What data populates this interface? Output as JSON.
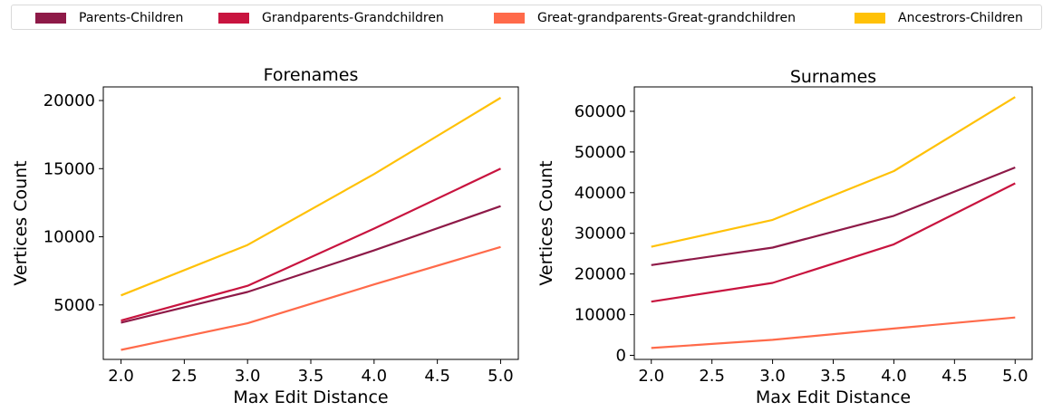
{
  "legend": {
    "items": [
      {
        "label": "Parents-Children",
        "color": "#8e1a48"
      },
      {
        "label": "Grandparents-Grandchildren",
        "color": "#c8143f"
      },
      {
        "label": "Great-grandparents-Great-grandchildren",
        "color": "#ff6a4a"
      },
      {
        "label": "Ancestrors-Children",
        "color": "#ffc107"
      }
    ]
  },
  "chart_data": [
    {
      "type": "line",
      "title": "Forenames",
      "xlabel": "Max Edit Distance",
      "ylabel": "Vertices Count",
      "x": [
        2,
        3,
        4,
        5
      ],
      "xlim": [
        1.86,
        5.14
      ],
      "ylim": [
        1000,
        21000
      ],
      "xticks": [
        "2.0",
        "2.5",
        "3.0",
        "3.5",
        "4.0",
        "4.5",
        "5.0"
      ],
      "yticks": [
        "5000",
        "10000",
        "15000",
        "20000"
      ],
      "grid": false,
      "legend": "top (shared)",
      "series": [
        {
          "name": "Parents-Children",
          "values": [
            3700,
            5950,
            9000,
            12250
          ]
        },
        {
          "name": "Grandparents-Grandchildren",
          "values": [
            3850,
            6400,
            10600,
            15000
          ]
        },
        {
          "name": "Great-grandparents-Great-grandchildren",
          "values": [
            1700,
            3650,
            6500,
            9250
          ]
        },
        {
          "name": "Ancestrors-Children",
          "values": [
            5700,
            9400,
            14600,
            20200
          ]
        }
      ]
    },
    {
      "type": "line",
      "title": "Surnames",
      "xlabel": "Max Edit Distance",
      "ylabel": "Vertices Count",
      "x": [
        2,
        3,
        4,
        5
      ],
      "xlim": [
        1.86,
        5.14
      ],
      "ylim": [
        -1000,
        66000
      ],
      "xticks": [
        "2.0",
        "2.5",
        "3.0",
        "3.5",
        "4.0",
        "4.5",
        "5.0"
      ],
      "yticks": [
        "0",
        "10000",
        "20000",
        "30000",
        "40000",
        "50000",
        "60000"
      ],
      "grid": false,
      "legend": "top (shared)",
      "series": [
        {
          "name": "Parents-Children",
          "values": [
            22200,
            26500,
            34300,
            46200
          ]
        },
        {
          "name": "Grandparents-Grandchildren",
          "values": [
            13200,
            17800,
            27300,
            42300
          ]
        },
        {
          "name": "Great-grandparents-Great-grandchildren",
          "values": [
            1800,
            3800,
            6600,
            9300
          ]
        },
        {
          "name": "Ancestrors-Children",
          "values": [
            26700,
            33300,
            45300,
            63500
          ]
        }
      ]
    }
  ]
}
